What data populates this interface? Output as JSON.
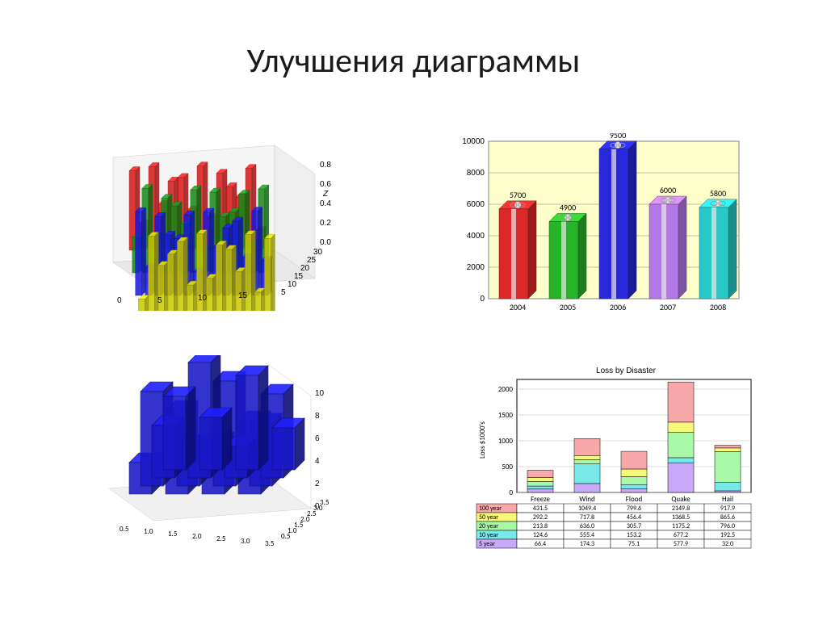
{
  "title": "Улучшения диаграммы",
  "chart1_3d_multi": {
    "type": "bar3d",
    "x_ticks": [
      "0",
      "5",
      "10",
      "15"
    ],
    "y_ticks": [
      "5",
      "10",
      "15",
      "20",
      "25",
      "30"
    ],
    "z_ticks": [
      "0.0",
      "0.2",
      "0.4",
      "0.6",
      "0.8"
    ],
    "z_axis_label": "Z",
    "series_colors": [
      "#c8c800",
      "#1818e0",
      "#188818",
      "#d81818"
    ],
    "border": "#000000"
  },
  "chart2_gifts": {
    "type": "bar",
    "categories": [
      "2004",
      "2005",
      "2006",
      "2007",
      "2008"
    ],
    "values": [
      5700,
      4900,
      9500,
      6000,
      5800
    ],
    "bar_colors": [
      "#dc2828",
      "#28b428",
      "#2828dc",
      "#b478e6",
      "#28c8c8"
    ],
    "ylim": [
      0,
      10000
    ],
    "ytick_step": 2000,
    "background": "#ffffcc",
    "grid_color": "#808080",
    "frame_color": "#808080"
  },
  "chart3_3d_blue": {
    "type": "bar3d",
    "z_ticks": [
      "0",
      "2",
      "4",
      "6",
      "8",
      "10"
    ],
    "xy_ticks": [
      "0.5",
      "1.0",
      "1.5",
      "2.0",
      "2.5",
      "3.0",
      "3.5"
    ],
    "bar_color": "#1818c8",
    "bar_edge": "#0a0a60"
  },
  "chart4_disaster": {
    "type": "stacked_bar_with_table",
    "title": "Loss by Disaster",
    "ylabel": "Loss $1000's",
    "categories": [
      "Freeze",
      "Wind",
      "Flood",
      "Quake",
      "Hail"
    ],
    "ylim": [
      0,
      2200
    ],
    "yticks": [
      0,
      500,
      1000,
      1500,
      2000
    ],
    "segment_labels": [
      "100 year",
      "50 year",
      "20 year",
      "10 year",
      "5 year"
    ],
    "segment_colors": [
      "#f8a8a8",
      "#f8f878",
      "#a8f8a8",
      "#78e8e8",
      "#c8a8f8"
    ],
    "table": {
      "rows": [
        {
          "label": "100 year",
          "color": "#f8a8a8",
          "cells": [
            "431.5",
            "1049.4",
            "799.6",
            "2149.8",
            "917.9"
          ]
        },
        {
          "label": "50 year",
          "color": "#f8f878",
          "cells": [
            "292.2",
            "717.8",
            "456.4",
            "1368.5",
            "865.6"
          ]
        },
        {
          "label": "20 year",
          "color": "#a8f8a8",
          "cells": [
            "213.8",
            "636.0",
            "305.7",
            "1175.2",
            "796.0"
          ]
        },
        {
          "label": "10 year",
          "color": "#78e8e8",
          "cells": [
            "124.6",
            "555.4",
            "153.2",
            "677.2",
            "192.5"
          ]
        },
        {
          "label": "5 year",
          "color": "#c8a8f8",
          "cells": [
            "66.4",
            "174.3",
            "75.1",
            "577.9",
            "32.0"
          ]
        }
      ]
    },
    "stacks": [
      [
        66,
        125,
        214,
        292,
        432
      ],
      [
        174,
        555,
        636,
        718,
        1049
      ],
      [
        75,
        153,
        306,
        456,
        800
      ],
      [
        578,
        677,
        1175,
        1369,
        2150
      ],
      [
        32,
        193,
        796,
        866,
        918
      ]
    ]
  }
}
